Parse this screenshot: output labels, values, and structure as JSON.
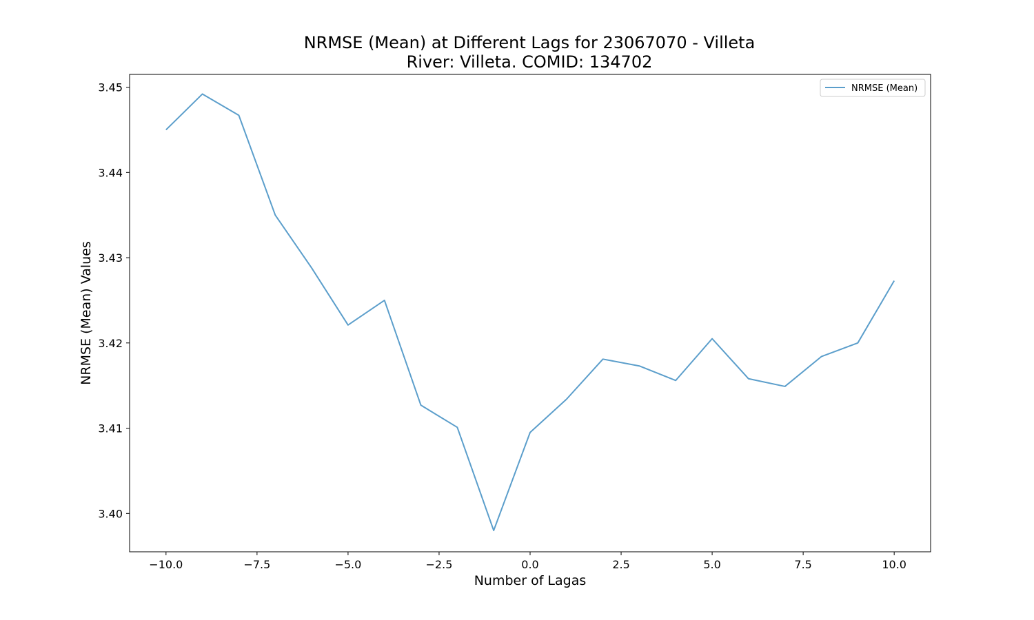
{
  "chart_data": {
    "type": "line",
    "title": "NRMSE (Mean) at Different Lags for 23067070 - Villeta",
    "subtitle": "River: Villeta. COMID: 134702",
    "xlabel": "Number of Lagas",
    "ylabel": "NRMSE (Mean) Values",
    "xlim": [
      -11.0,
      11.0
    ],
    "ylim": [
      3.3955,
      3.4515
    ],
    "x_ticks": [
      -10.0,
      -7.5,
      -5.0,
      -2.5,
      0.0,
      2.5,
      5.0,
      7.5,
      10.0
    ],
    "x_tick_labels": [
      "−10.0",
      "−7.5",
      "−5.0",
      "−2.5",
      "0.0",
      "2.5",
      "5.0",
      "7.5",
      "10.0"
    ],
    "y_ticks": [
      3.4,
      3.41,
      3.42,
      3.43,
      3.44,
      3.45
    ],
    "y_tick_labels": [
      "3.40",
      "3.41",
      "3.42",
      "3.43",
      "3.44",
      "3.45"
    ],
    "grid": false,
    "legend_position": "top-right",
    "color": "#5b9ecb",
    "series": [
      {
        "name": "NRMSE (Mean)",
        "x": [
          -10,
          -9,
          -8,
          -7,
          -6,
          -5,
          -4,
          -3,
          -2,
          -1,
          0,
          1,
          2,
          3,
          4,
          5,
          6,
          7,
          8,
          9,
          10
        ],
        "values": [
          3.445,
          3.4492,
          3.4467,
          3.435,
          3.4288,
          3.4221,
          3.425,
          3.4127,
          3.4101,
          3.398,
          3.4095,
          3.4134,
          3.4181,
          3.4173,
          3.4156,
          3.4205,
          3.4158,
          3.4149,
          3.4184,
          3.42,
          3.4273
        ]
      }
    ]
  }
}
